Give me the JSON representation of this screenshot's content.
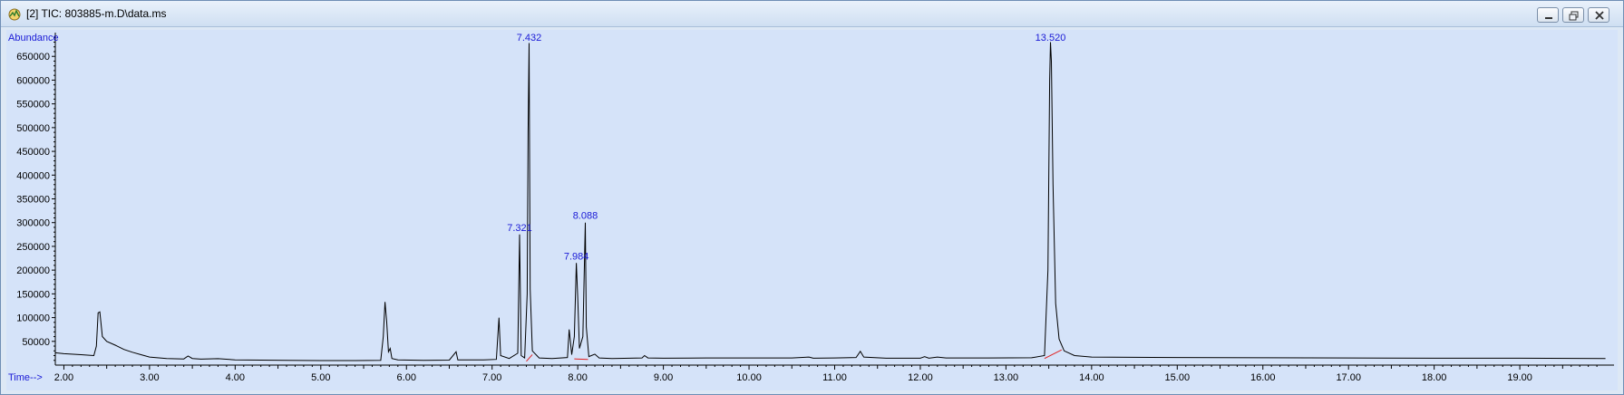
{
  "window": {
    "title": "[2] TIC: 803885-m.D\\data.ms",
    "controls": [
      "minimize",
      "restore",
      "close"
    ]
  },
  "colors": {
    "plot_background": "#d5e3f9",
    "trace": "#000000",
    "peak_label": "#1a1ad6",
    "baseline": "#e02020",
    "axis_text": "#000000",
    "axis_title": "#1a1ad6"
  },
  "chart_data": {
    "type": "line",
    "ylabel": "Abundance",
    "xlabel": "Time-->",
    "xlim": [
      1.9,
      20.1
    ],
    "ylim": [
      0,
      700000
    ],
    "x_ticks": [
      "2.00",
      "3.00",
      "4.00",
      "5.00",
      "6.00",
      "7.00",
      "8.00",
      "9.00",
      "10.00",
      "11.00",
      "12.00",
      "13.00",
      "14.00",
      "15.00",
      "16.00",
      "17.00",
      "18.00",
      "19.00"
    ],
    "y_ticks": [
      "50000",
      "100000",
      "150000",
      "200000",
      "250000",
      "300000",
      "350000",
      "400000",
      "450000",
      "500000",
      "550000",
      "600000",
      "650000"
    ],
    "peak_labels": [
      {
        "time": 7.321,
        "text": "7.321"
      },
      {
        "time": 7.432,
        "text": "7.432"
      },
      {
        "time": 7.984,
        "text": "7.984"
      },
      {
        "time": 8.088,
        "text": "8.088"
      },
      {
        "time": 13.52,
        "text": "13.520"
      }
    ],
    "series": [
      {
        "points": [
          [
            1.9,
            26000
          ],
          [
            2.0,
            24000
          ],
          [
            2.2,
            22000
          ],
          [
            2.35,
            20000
          ],
          [
            2.38,
            40000
          ],
          [
            2.4,
            110000
          ],
          [
            2.42,
            112000
          ],
          [
            2.45,
            60000
          ],
          [
            2.5,
            50000
          ],
          [
            2.6,
            42000
          ],
          [
            2.7,
            33000
          ],
          [
            2.8,
            27000
          ],
          [
            2.9,
            22000
          ],
          [
            3.0,
            17000
          ],
          [
            3.2,
            14000
          ],
          [
            3.4,
            13000
          ],
          [
            3.45,
            19000
          ],
          [
            3.5,
            14000
          ],
          [
            3.6,
            12500
          ],
          [
            3.8,
            13500
          ],
          [
            4.0,
            11000
          ],
          [
            4.3,
            10500
          ],
          [
            4.6,
            10000
          ],
          [
            5.0,
            9500
          ],
          [
            5.4,
            9500
          ],
          [
            5.7,
            10000
          ],
          [
            5.73,
            60000
          ],
          [
            5.75,
            133000
          ],
          [
            5.77,
            90000
          ],
          [
            5.79,
            28000
          ],
          [
            5.81,
            35000
          ],
          [
            5.83,
            14000
          ],
          [
            5.9,
            11000
          ],
          [
            6.2,
            10000
          ],
          [
            6.5,
            10500
          ],
          [
            6.58,
            28000
          ],
          [
            6.6,
            11000
          ],
          [
            6.9,
            11000
          ],
          [
            7.05,
            12000
          ],
          [
            7.08,
            100000
          ],
          [
            7.1,
            20000
          ],
          [
            7.2,
            14000
          ],
          [
            7.3,
            25000
          ],
          [
            7.321,
            275000
          ],
          [
            7.34,
            20000
          ],
          [
            7.38,
            15000
          ],
          [
            7.41,
            150000
          ],
          [
            7.42,
            490000
          ],
          [
            7.432,
            678000
          ],
          [
            7.445,
            160000
          ],
          [
            7.47,
            30000
          ],
          [
            7.55,
            15000
          ],
          [
            7.7,
            14000
          ],
          [
            7.88,
            16000
          ],
          [
            7.9,
            75000
          ],
          [
            7.93,
            22000
          ],
          [
            7.96,
            60000
          ],
          [
            7.984,
            215000
          ],
          [
            8.0,
            145000
          ],
          [
            8.02,
            35000
          ],
          [
            8.06,
            60000
          ],
          [
            8.088,
            300000
          ],
          [
            8.1,
            80000
          ],
          [
            8.13,
            18000
          ],
          [
            8.2,
            23000
          ],
          [
            8.25,
            15000
          ],
          [
            8.4,
            14000
          ],
          [
            8.75,
            15000
          ],
          [
            8.78,
            20000
          ],
          [
            8.82,
            15000
          ],
          [
            9.0,
            14500
          ],
          [
            9.5,
            15000
          ],
          [
            10.0,
            15000
          ],
          [
            10.5,
            15000
          ],
          [
            10.7,
            17000
          ],
          [
            10.75,
            14500
          ],
          [
            11.0,
            15000
          ],
          [
            11.25,
            16000
          ],
          [
            11.3,
            29000
          ],
          [
            11.34,
            17000
          ],
          [
            11.6,
            14500
          ],
          [
            12.0,
            14500
          ],
          [
            12.05,
            18000
          ],
          [
            12.1,
            14500
          ],
          [
            12.2,
            17000
          ],
          [
            12.3,
            15000
          ],
          [
            12.8,
            15000
          ],
          [
            13.3,
            15500
          ],
          [
            13.45,
            20000
          ],
          [
            13.49,
            200000
          ],
          [
            13.51,
            600000
          ],
          [
            13.52,
            680000
          ],
          [
            13.53,
            640000
          ],
          [
            13.55,
            380000
          ],
          [
            13.58,
            130000
          ],
          [
            13.62,
            55000
          ],
          [
            13.68,
            30000
          ],
          [
            13.8,
            20000
          ],
          [
            14.0,
            17000
          ],
          [
            15.0,
            16000
          ],
          [
            16.0,
            15500
          ],
          [
            17.0,
            15000
          ],
          [
            18.0,
            14500
          ],
          [
            19.0,
            14500
          ],
          [
            20.0,
            14000
          ]
        ]
      }
    ]
  }
}
